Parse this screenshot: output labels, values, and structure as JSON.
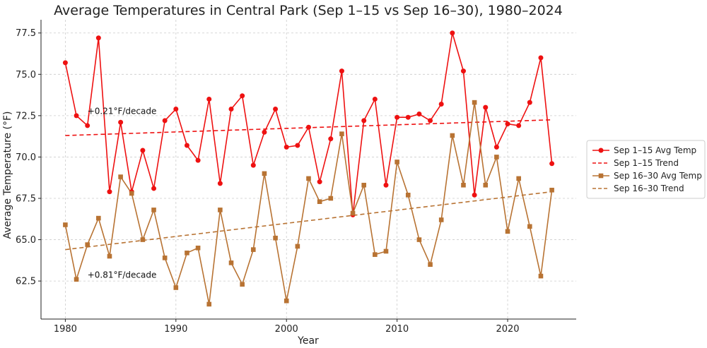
{
  "chart_data": {
    "type": "line",
    "title": "Average Temperatures in Central Park (Sep 1–15 vs Sep 16–30), 1980–2024",
    "xlabel": "Year",
    "ylabel": "Average Temperature (°F)",
    "xlim": [
      1977.8,
      2026.2
    ],
    "ylim": [
      60.2,
      78.3
    ],
    "xticks": [
      1980,
      1990,
      2000,
      2010,
      2020
    ],
    "yticks": [
      62.5,
      65.0,
      67.5,
      70.0,
      72.5,
      75.0,
      77.5
    ],
    "grid": true,
    "legend_position": "right",
    "x": [
      1980,
      1981,
      1982,
      1983,
      1984,
      1985,
      1986,
      1987,
      1988,
      1989,
      1990,
      1991,
      1992,
      1993,
      1994,
      1995,
      1996,
      1997,
      1998,
      1999,
      2000,
      2001,
      2002,
      2003,
      2004,
      2005,
      2006,
      2007,
      2008,
      2009,
      2010,
      2011,
      2012,
      2013,
      2014,
      2015,
      2016,
      2017,
      2018,
      2019,
      2020,
      2021,
      2022,
      2023,
      2024
    ],
    "series": [
      {
        "name": "Sep 1–15 Avg Temp",
        "color": "#ee1111",
        "marker": "circle",
        "style": "solid",
        "values": [
          75.7,
          72.5,
          71.9,
          77.2,
          67.9,
          72.1,
          67.9,
          70.4,
          68.1,
          72.2,
          72.9,
          70.7,
          69.8,
          73.5,
          68.4,
          72.9,
          73.7,
          69.5,
          71.5,
          72.9,
          70.6,
          70.7,
          71.8,
          68.5,
          71.1,
          75.2,
          66.5,
          72.2,
          73.5,
          68.3,
          72.4,
          72.4,
          72.6,
          72.2,
          73.2,
          77.5,
          75.2,
          67.7,
          73.0,
          70.6,
          72.0,
          71.9,
          73.3,
          76.0,
          69.6
        ]
      },
      {
        "name": "Sep 1–15 Trend",
        "color": "#ee1111",
        "style": "dashed",
        "endpoints_x": [
          1980,
          2024
        ],
        "endpoints_y": [
          71.3,
          72.25
        ]
      },
      {
        "name": "Sep 16–30 Avg Temp",
        "color": "#b87333",
        "marker": "square",
        "style": "solid",
        "values": [
          65.9,
          62.6,
          64.7,
          66.3,
          64.0,
          68.8,
          67.8,
          65.0,
          66.8,
          63.9,
          62.1,
          64.2,
          64.5,
          61.1,
          66.8,
          63.6,
          62.3,
          64.4,
          69.0,
          65.1,
          61.3,
          64.6,
          68.7,
          67.3,
          67.5,
          71.4,
          66.6,
          68.3,
          64.1,
          64.3,
          69.7,
          67.7,
          65.0,
          63.5,
          66.2,
          71.3,
          68.3,
          73.3,
          68.3,
          70.0,
          65.5,
          68.7,
          65.8,
          62.8,
          68.0
        ]
      },
      {
        "name": "Sep 16–30 Trend",
        "color": "#b87333",
        "style": "dashed",
        "endpoints_x": [
          1980,
          2024
        ],
        "endpoints_y": [
          64.4,
          67.9
        ]
      }
    ],
    "annotations": [
      {
        "text": "+0.21°F/decade",
        "x": 1982,
        "y": 72.6
      },
      {
        "text": "+0.81°F/decade",
        "x": 1982,
        "y": 62.7
      }
    ]
  }
}
